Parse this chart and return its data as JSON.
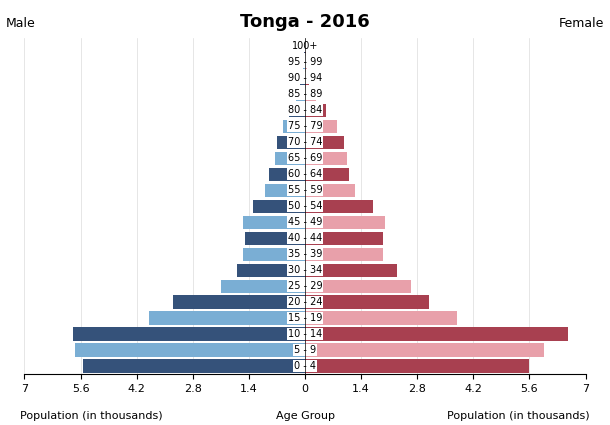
{
  "title": "Tonga - 2016",
  "age_groups": [
    "0 - 4",
    "5 - 9",
    "10 - 14",
    "15 - 19",
    "20 - 24",
    "25 - 29",
    "30 - 34",
    "35 - 39",
    "40 - 44",
    "45 - 49",
    "50 - 54",
    "55 - 59",
    "60 - 64",
    "65 - 69",
    "70 - 74",
    "75 - 79",
    "80 - 84",
    "85 - 89",
    "90 - 94",
    "95 - 99",
    "100+"
  ],
  "male_values": [
    5.55,
    5.75,
    5.8,
    3.9,
    3.3,
    2.1,
    1.7,
    1.55,
    1.5,
    1.55,
    1.3,
    1.0,
    0.9,
    0.75,
    0.7,
    0.55,
    0.4,
    0.22,
    0.12,
    0.05,
    0.03
  ],
  "female_values": [
    5.6,
    5.95,
    6.55,
    3.8,
    3.1,
    2.65,
    2.3,
    1.95,
    1.95,
    2.0,
    1.7,
    1.25,
    1.1,
    1.05,
    0.98,
    0.8,
    0.52,
    0.28,
    0.1,
    0.04,
    0.02
  ],
  "male_color_dark": "#35527a",
  "male_color_light": "#7aaed4",
  "female_color_dark": "#a84050",
  "female_color_light": "#e8a0aa",
  "xlim": 7.0,
  "xlabel_left": "Population (in thousands)",
  "xlabel_center": "Age Group",
  "xlabel_right": "Population (in thousands)",
  "label_male": "Male",
  "label_female": "Female",
  "background_color": "#ffffff"
}
